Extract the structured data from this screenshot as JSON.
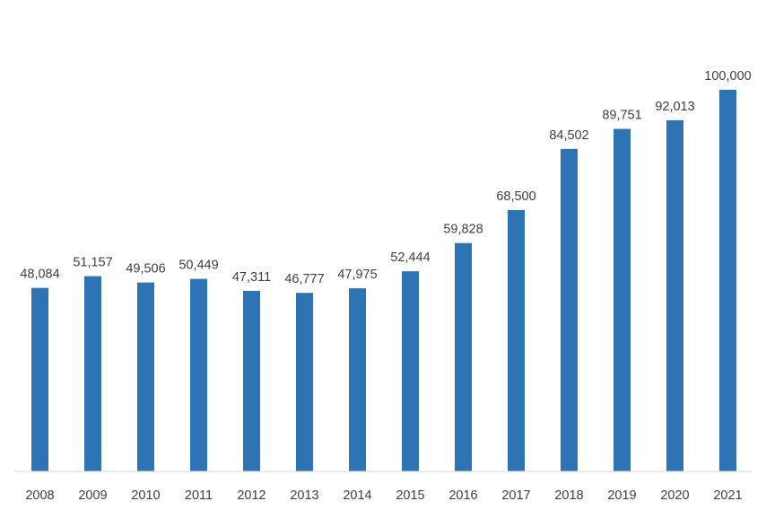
{
  "chart_data": {
    "type": "bar",
    "title": "",
    "xlabel": "",
    "ylabel": "",
    "categories": [
      "2008",
      "2009",
      "2010",
      "2011",
      "2012",
      "2013",
      "2014",
      "2015",
      "2016",
      "2017",
      "2018",
      "2019",
      "2020",
      "2021"
    ],
    "values": [
      48084,
      51157,
      49506,
      50449,
      47311,
      46777,
      47975,
      52444,
      59828,
      68500,
      84502,
      89751,
      92013,
      100000
    ],
    "data_labels": [
      "48,084",
      "51,157",
      "49,506",
      "50,449",
      "47,311",
      "46,777",
      "47,975",
      "52,444",
      "59,828",
      "68,500",
      "84,502",
      "89,751",
      "92,013",
      "100,000"
    ],
    "ylim": [
      0,
      100000
    ],
    "grid": false,
    "legend": "none",
    "bar_color": "#2e74b5"
  }
}
